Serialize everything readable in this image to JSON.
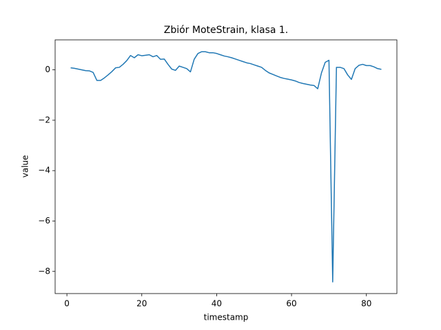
{
  "chart_data": {
    "type": "line",
    "title": "Zbiór MoteStrain, klasa 1.",
    "x_label": "timestamp",
    "y_label": "value",
    "x": [
      1,
      2,
      3,
      4,
      5,
      6,
      7,
      8,
      9,
      10,
      11,
      12,
      13,
      14,
      15,
      16,
      17,
      18,
      19,
      20,
      21,
      22,
      23,
      24,
      25,
      26,
      27,
      28,
      29,
      30,
      31,
      32,
      33,
      34,
      35,
      36,
      37,
      38,
      39,
      40,
      41,
      42,
      43,
      44,
      45,
      46,
      47,
      48,
      49,
      50,
      51,
      52,
      53,
      54,
      55,
      56,
      57,
      58,
      59,
      60,
      61,
      62,
      63,
      64,
      65,
      66,
      67,
      68,
      69,
      70,
      71,
      72,
      73,
      74,
      75,
      76,
      77,
      78,
      79,
      80,
      81,
      82,
      83,
      84
    ],
    "series": [
      {
        "color": "#1f77b4",
        "values": [
          0.08,
          0.06,
          0.03,
          0.0,
          -0.03,
          -0.04,
          -0.1,
          -0.42,
          -0.42,
          -0.32,
          -0.2,
          -0.07,
          0.08,
          0.1,
          0.22,
          0.37,
          0.57,
          0.48,
          0.6,
          0.56,
          0.58,
          0.6,
          0.52,
          0.57,
          0.42,
          0.43,
          0.22,
          0.03,
          -0.02,
          0.15,
          0.1,
          0.05,
          -0.08,
          0.42,
          0.65,
          0.72,
          0.72,
          0.68,
          0.68,
          0.65,
          0.6,
          0.55,
          0.52,
          0.48,
          0.43,
          0.38,
          0.33,
          0.28,
          0.25,
          0.2,
          0.15,
          0.1,
          -0.02,
          -0.12,
          -0.18,
          -0.24,
          -0.3,
          -0.34,
          -0.37,
          -0.4,
          -0.44,
          -0.5,
          -0.54,
          -0.57,
          -0.6,
          -0.62,
          -0.75,
          -0.12,
          0.3,
          0.38,
          -8.42,
          0.1,
          0.1,
          0.05,
          -0.2,
          -0.38,
          0.05,
          0.18,
          0.22,
          0.17,
          0.17,
          0.12,
          0.05,
          0.02
        ]
      }
    ],
    "xlim": [
      -3.15,
      88.15
    ],
    "ylim": [
      -8.88,
      1.19
    ],
    "xticks": [
      0,
      20,
      40,
      60,
      80
    ],
    "yticks": [
      0,
      {
        "value": -2,
        "label": "−2"
      },
      {
        "value": -4,
        "label": "−4"
      },
      {
        "value": -6,
        "label": "−6"
      },
      {
        "value": -8,
        "label": "−8"
      }
    ]
  }
}
